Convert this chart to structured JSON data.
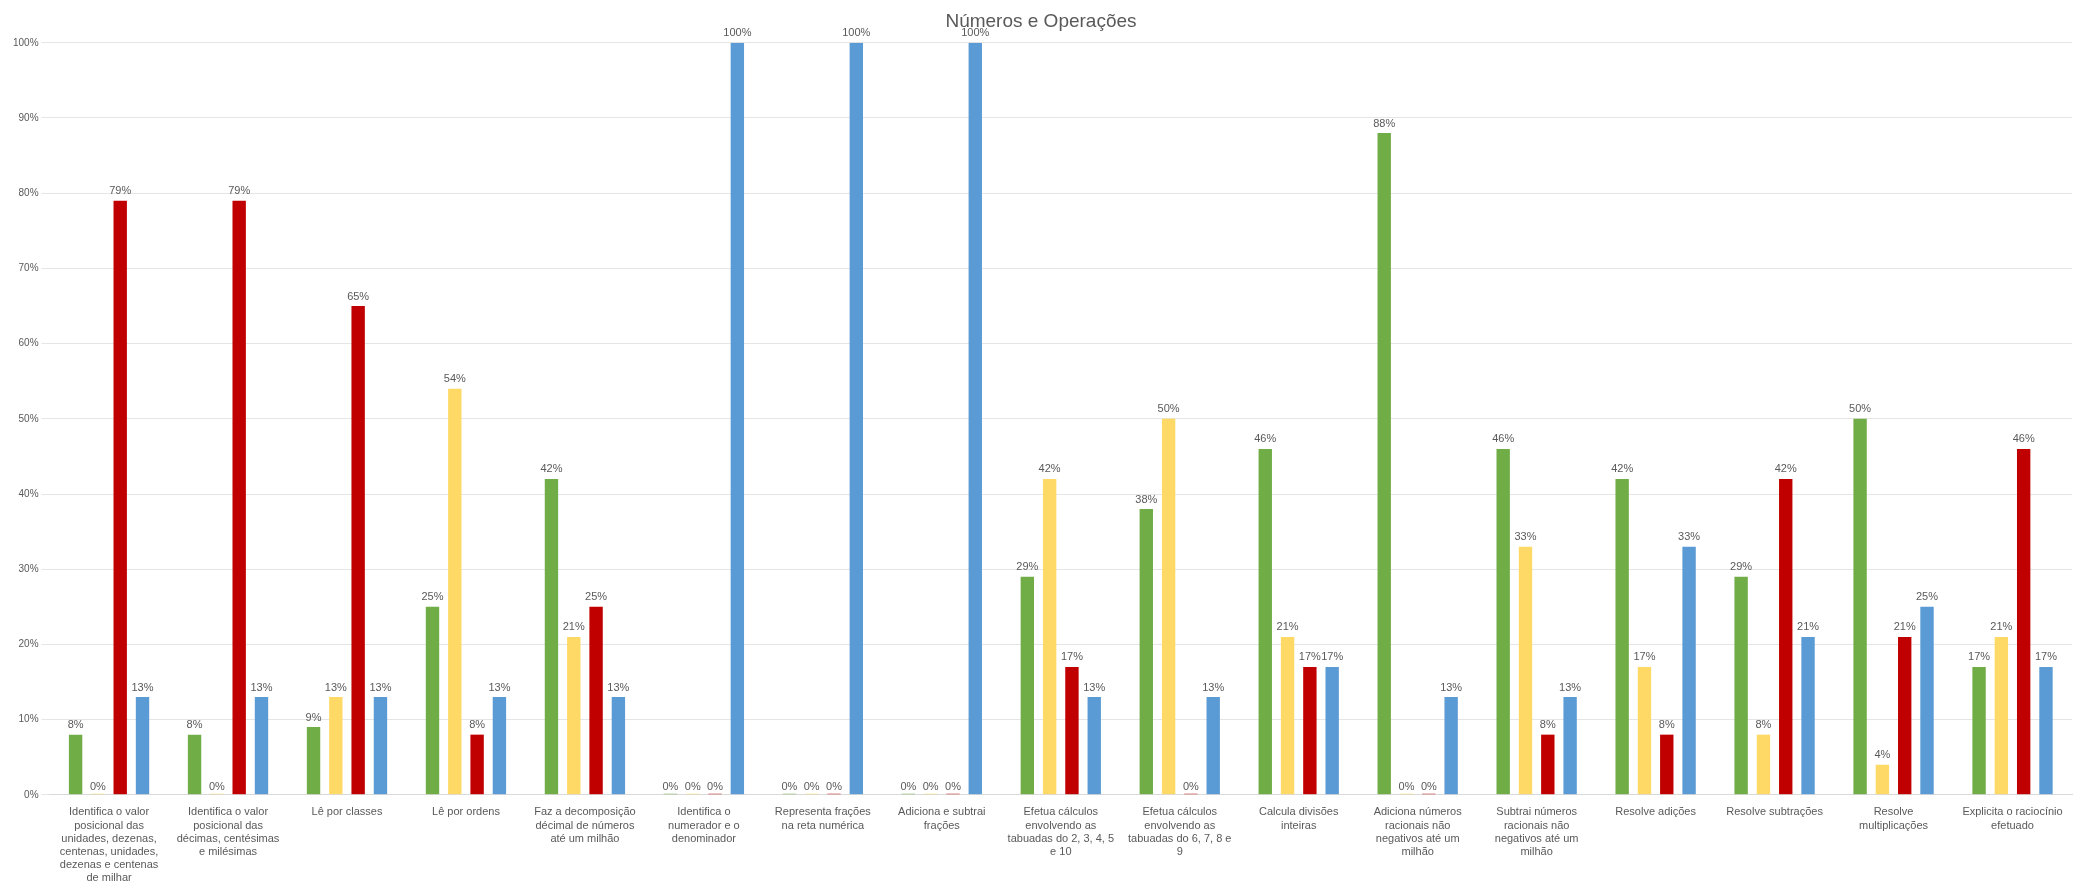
{
  "chart_data": {
    "type": "bar",
    "title": "Números e Operações",
    "categories": [
      "Identifica o valor posicional das unidades, dezenas, centenas, unidades, dezenas e centenas de milhar",
      "Identifica o valor posicional das décimas, centésimas e milésimas",
      "Lê por classes",
      "Lê por ordens",
      "Faz a decomposição décimal de números até um milhão",
      "Identifica o numerador e o denominador",
      "Representa frações na reta numérica",
      "Adiciona e subtrai frações",
      "Efetua cálculos envolvendo as tabuadas do 2, 3, 4, 5 e 10",
      "Efetua cálculos envolvendo as tabuadas do 6, 7, 8 e 9",
      "Calcula divisões inteiras",
      "Adiciona números racionais não negativos até um milhão",
      "Subtrai números racionais não negativos até um milhão",
      "Resolve adições",
      "Resolve subtrações",
      "Resolve multiplicações",
      "Explicita o raciocínio efetuado"
    ],
    "series": [
      {
        "color": "#70ad47",
        "values": [
          8,
          8,
          9,
          25,
          42,
          0,
          0,
          0,
          29,
          38,
          46,
          88,
          46,
          42,
          29,
          50,
          17
        ],
        "value_labels": [
          "8%",
          "8%",
          "9%",
          "25%",
          "42%",
          "0%",
          "0%",
          "0%",
          "29%",
          "38%",
          "46%",
          "88%",
          "46%",
          "42%",
          "29%",
          "50%",
          "17%"
        ]
      },
      {
        "color": "#ffd966",
        "values": [
          0,
          0,
          13,
          54,
          21,
          0,
          0,
          0,
          42,
          50,
          21,
          0,
          33,
          17,
          8,
          4,
          21
        ],
        "value_labels": [
          "0%",
          "0%",
          "13%",
          "54%",
          "21%",
          "0%",
          "0%",
          "0%",
          "42%",
          "50%",
          "21%",
          "0%",
          "33%",
          "17%",
          "8%",
          "4%",
          "21%"
        ]
      },
      {
        "color": "#c00000",
        "values": [
          79,
          79,
          65,
          8,
          25,
          0,
          0,
          0,
          17,
          0,
          17,
          0,
          8,
          8,
          42,
          21,
          46
        ],
        "value_labels": [
          "79%",
          "79%",
          "65%",
          "8%",
          "25%",
          "0%",
          "0%",
          "0%",
          "17%",
          "0%",
          "17%",
          "0%",
          "8%",
          "8%",
          "42%",
          "21%",
          "46%"
        ]
      },
      {
        "color": "#5b9bd5",
        "values": [
          13,
          13,
          13,
          13,
          13,
          100,
          100,
          100,
          13,
          13,
          17,
          13,
          13,
          33,
          21,
          25,
          17
        ],
        "value_labels": [
          "13%",
          "13%",
          "13%",
          "13%",
          "13%",
          "100%",
          "100%",
          "100%",
          "13%",
          "13%",
          "17%",
          "13%",
          "13%",
          "33%",
          "21%",
          "25%",
          "17%"
        ]
      }
    ],
    "ylim": [
      0,
      100
    ],
    "yticks": [
      {
        "value": 0,
        "label": "0%"
      },
      {
        "value": 10,
        "label": "10%"
      },
      {
        "value": 20,
        "label": "20%"
      },
      {
        "value": 30,
        "label": "30%"
      },
      {
        "value": 40,
        "label": "40%"
      },
      {
        "value": 50,
        "label": "50%"
      },
      {
        "value": 60,
        "label": "60%"
      },
      {
        "value": 70,
        "label": "70%"
      },
      {
        "value": 80,
        "label": "80%"
      },
      {
        "value": 90,
        "label": "90%"
      },
      {
        "value": 100,
        "label": "100%"
      }
    ],
    "grid": "y",
    "legend": false
  }
}
